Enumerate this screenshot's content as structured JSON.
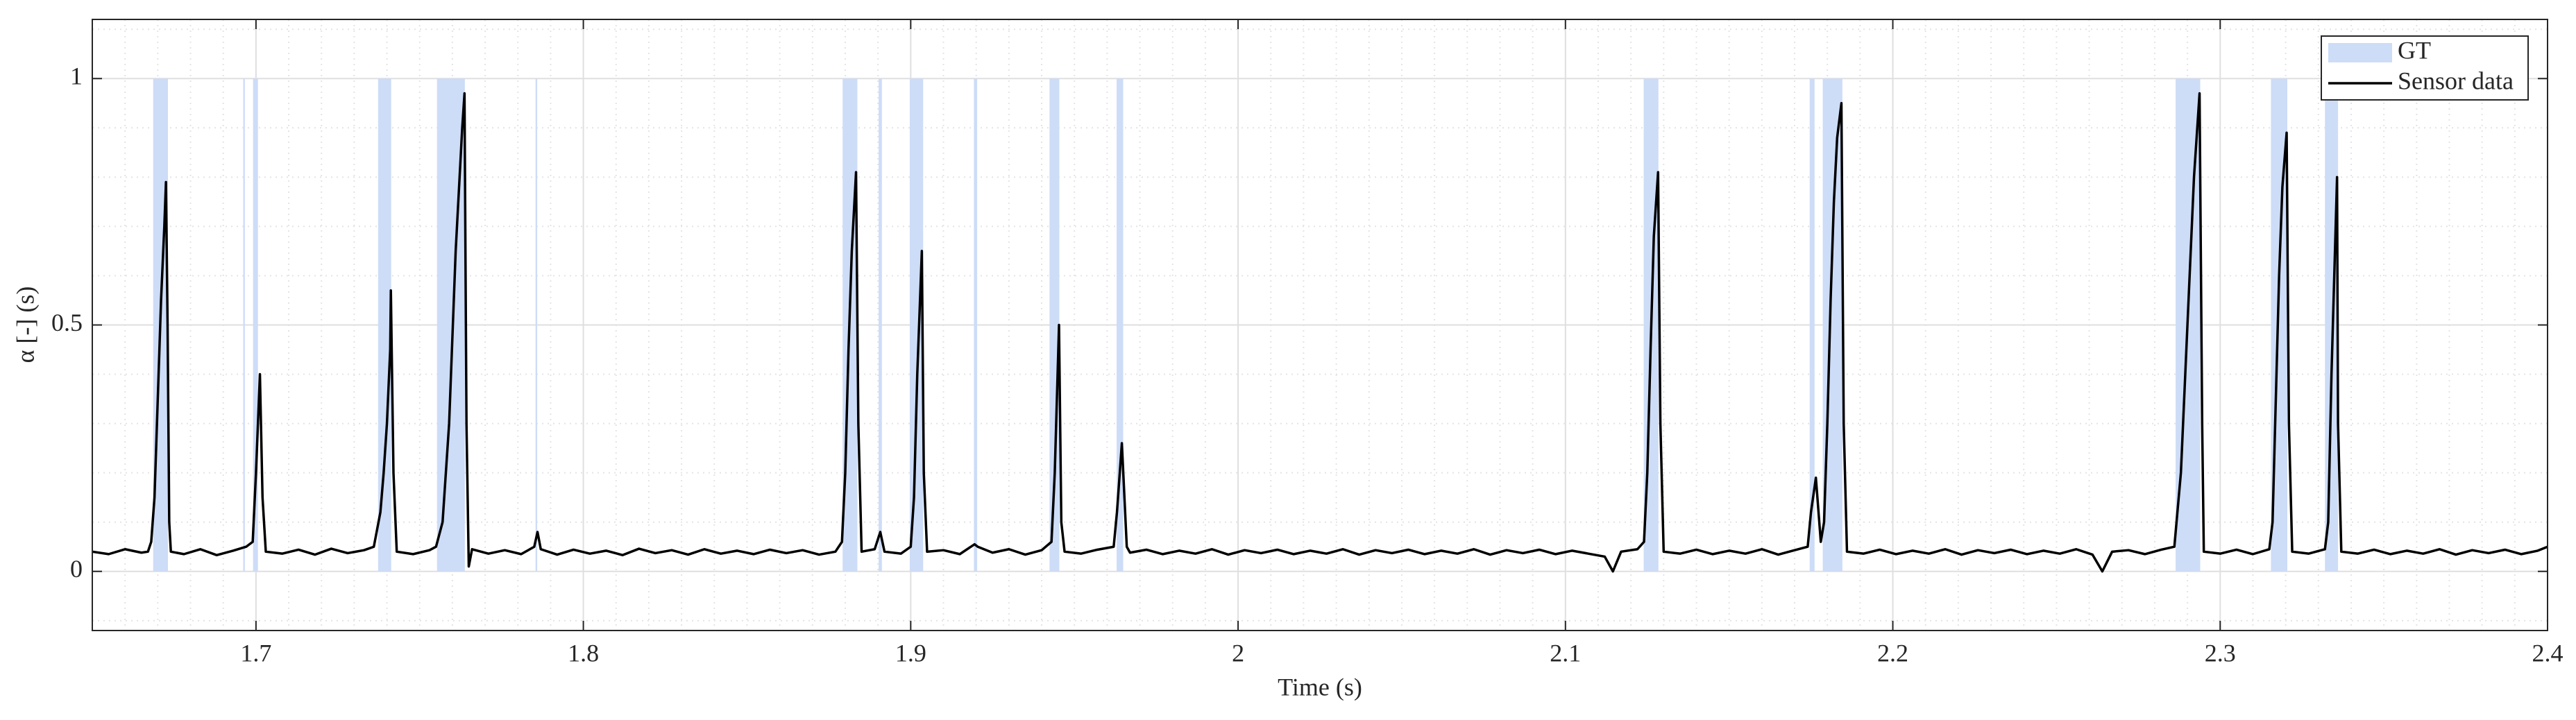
{
  "chart_data": {
    "type": "line",
    "xlabel": "Time (s)",
    "ylabel": "α [-] (s)",
    "xlim": [
      1.65,
      2.4
    ],
    "ylim": [
      -0.12,
      1.12
    ],
    "xticks": [
      1.7,
      1.8,
      1.9,
      2,
      2.1,
      2.2,
      2.3,
      2.4
    ],
    "yticks": [
      0,
      0.5,
      1
    ],
    "xminorticks": [
      1.65,
      1.66,
      1.67,
      1.68,
      1.69,
      1.71,
      1.72,
      1.73,
      1.74,
      1.75,
      1.76,
      1.77,
      1.78,
      1.79,
      1.81,
      1.82,
      1.83,
      1.84,
      1.85,
      1.86,
      1.87,
      1.88,
      1.89,
      1.91,
      1.92,
      1.93,
      1.94,
      1.95,
      1.96,
      1.97,
      1.98,
      1.99,
      2.01,
      2.02,
      2.03,
      2.04,
      2.05,
      2.06,
      2.07,
      2.08,
      2.09,
      2.11,
      2.12,
      2.13,
      2.14,
      2.15,
      2.16,
      2.17,
      2.18,
      2.19,
      2.21,
      2.22,
      2.23,
      2.24,
      2.25,
      2.26,
      2.27,
      2.28,
      2.29,
      2.31,
      2.32,
      2.33,
      2.34,
      2.35,
      2.36,
      2.37,
      2.38,
      2.39
    ],
    "yminorticks": [
      -0.1,
      0.1,
      0.2,
      0.3,
      0.4,
      0.6,
      0.7,
      0.8,
      0.9,
      1.1
    ],
    "grid": true,
    "minor_grid": true,
    "legend": "upper right",
    "series": [
      {
        "name": "GT",
        "color": "#cddcf7",
        "level": 1,
        "spans": [
          [
            1.6686,
            1.6731
          ],
          [
            1.6961,
            1.6966
          ],
          [
            1.6991,
            1.7006
          ],
          [
            1.7373,
            1.7413
          ],
          [
            1.7553,
            1.7638
          ],
          [
            1.7854,
            1.7859
          ],
          [
            1.8792,
            1.8837
          ],
          [
            1.8902,
            1.8912
          ],
          [
            1.8997,
            1.9038
          ],
          [
            1.9193,
            1.9203
          ],
          [
            1.9424,
            1.9454
          ],
          [
            1.9629,
            1.9649
          ],
          [
            2.1239,
            2.1284
          ],
          [
            2.1746,
            2.1761
          ],
          [
            2.1786,
            2.1846
          ],
          [
            2.2864,
            2.2939
          ],
          [
            2.3155,
            2.3205
          ],
          [
            2.332,
            2.336
          ]
        ]
      },
      {
        "name": "Sensor data",
        "color": "#000000",
        "x": [
          1.65,
          1.655,
          1.66,
          1.665,
          1.667,
          1.668,
          1.669,
          1.67,
          1.671,
          1.672,
          1.6725,
          1.673,
          1.6735,
          1.674,
          1.678,
          1.683,
          1.688,
          1.693,
          1.697,
          1.699,
          1.7,
          1.7012,
          1.702,
          1.703,
          1.708,
          1.713,
          1.718,
          1.723,
          1.728,
          1.733,
          1.736,
          1.738,
          1.739,
          1.74,
          1.741,
          1.7412,
          1.742,
          1.743,
          1.748,
          1.753,
          1.755,
          1.757,
          1.759,
          1.761,
          1.763,
          1.7637,
          1.7643,
          1.765,
          1.766,
          1.771,
          1.776,
          1.781,
          1.785,
          1.786,
          1.787,
          1.792,
          1.797,
          1.802,
          1.807,
          1.812,
          1.817,
          1.822,
          1.827,
          1.832,
          1.837,
          1.842,
          1.847,
          1.852,
          1.857,
          1.862,
          1.867,
          1.872,
          1.877,
          1.879,
          1.88,
          1.881,
          1.882,
          1.8833,
          1.884,
          1.885,
          1.889,
          1.8907,
          1.892,
          1.897,
          1.9,
          1.901,
          1.902,
          1.9034,
          1.904,
          1.905,
          1.91,
          1.915,
          1.9195,
          1.9205,
          1.925,
          1.93,
          1.935,
          1.94,
          1.943,
          1.944,
          1.9453,
          1.946,
          1.947,
          1.952,
          1.957,
          1.962,
          1.963,
          1.9645,
          1.966,
          1.967,
          1.972,
          1.977,
          1.982,
          1.987,
          1.992,
          1.997,
          2.002,
          2.007,
          2.012,
          2.017,
          2.022,
          2.027,
          2.032,
          2.037,
          2.042,
          2.047,
          2.052,
          2.057,
          2.062,
          2.067,
          2.072,
          2.077,
          2.082,
          2.087,
          2.092,
          2.097,
          2.102,
          2.107,
          2.112,
          2.1145,
          2.117,
          2.122,
          2.124,
          2.125,
          2.126,
          2.127,
          2.1283,
          2.129,
          2.13,
          2.135,
          2.14,
          2.145,
          2.15,
          2.155,
          2.16,
          2.165,
          2.17,
          2.174,
          2.175,
          2.1765,
          2.178,
          2.179,
          2.18,
          2.181,
          2.182,
          2.183,
          2.1843,
          2.185,
          2.186,
          2.191,
          2.196,
          2.201,
          2.206,
          2.211,
          2.216,
          2.221,
          2.226,
          2.231,
          2.236,
          2.241,
          2.246,
          2.251,
          2.256,
          2.261,
          2.264,
          2.267,
          2.272,
          2.277,
          2.282,
          2.286,
          2.288,
          2.29,
          2.292,
          2.2937,
          2.2945,
          2.295,
          2.3,
          2.305,
          2.31,
          2.315,
          2.316,
          2.317,
          2.318,
          2.319,
          2.3203,
          2.321,
          2.322,
          2.327,
          2.332,
          2.333,
          2.334,
          2.3357,
          2.336,
          2.337,
          2.342,
          2.347,
          2.352,
          2.357,
          2.362,
          2.367,
          2.372,
          2.377,
          2.382,
          2.387,
          2.392,
          2.397,
          2.4
        ],
        "values": [
          0.04,
          0.035,
          0.045,
          0.038,
          0.04,
          0.06,
          0.15,
          0.35,
          0.55,
          0.7,
          0.79,
          0.5,
          0.1,
          0.04,
          0.035,
          0.045,
          0.033,
          0.042,
          0.05,
          0.06,
          0.2,
          0.4,
          0.15,
          0.04,
          0.036,
          0.044,
          0.034,
          0.046,
          0.037,
          0.043,
          0.05,
          0.12,
          0.2,
          0.3,
          0.45,
          0.57,
          0.2,
          0.04,
          0.035,
          0.043,
          0.05,
          0.1,
          0.3,
          0.65,
          0.9,
          0.97,
          0.3,
          0.01,
          0.045,
          0.036,
          0.043,
          0.035,
          0.05,
          0.08,
          0.045,
          0.034,
          0.044,
          0.036,
          0.042,
          0.033,
          0.046,
          0.037,
          0.043,
          0.034,
          0.045,
          0.036,
          0.042,
          0.035,
          0.044,
          0.037,
          0.043,
          0.034,
          0.04,
          0.06,
          0.2,
          0.45,
          0.65,
          0.81,
          0.3,
          0.04,
          0.045,
          0.08,
          0.04,
          0.036,
          0.05,
          0.15,
          0.4,
          0.65,
          0.2,
          0.04,
          0.043,
          0.035,
          0.055,
          0.05,
          0.038,
          0.045,
          0.034,
          0.043,
          0.06,
          0.2,
          0.5,
          0.1,
          0.04,
          0.036,
          0.044,
          0.05,
          0.12,
          0.26,
          0.05,
          0.038,
          0.044,
          0.035,
          0.042,
          0.036,
          0.045,
          0.034,
          0.043,
          0.037,
          0.044,
          0.035,
          0.042,
          0.036,
          0.045,
          0.034,
          0.043,
          0.037,
          0.044,
          0.035,
          0.042,
          0.036,
          0.045,
          0.034,
          0.043,
          0.037,
          0.044,
          0.035,
          0.042,
          0.036,
          0.03,
          0.0,
          0.04,
          0.045,
          0.06,
          0.2,
          0.45,
          0.68,
          0.81,
          0.3,
          0.04,
          0.036,
          0.044,
          0.035,
          0.042,
          0.036,
          0.045,
          0.034,
          0.043,
          0.05,
          0.12,
          0.19,
          0.06,
          0.1,
          0.3,
          0.55,
          0.75,
          0.88,
          0.95,
          0.3,
          0.04,
          0.036,
          0.044,
          0.035,
          0.042,
          0.036,
          0.045,
          0.034,
          0.043,
          0.037,
          0.044,
          0.035,
          0.042,
          0.036,
          0.045,
          0.034,
          0.0,
          0.04,
          0.043,
          0.035,
          0.044,
          0.05,
          0.2,
          0.5,
          0.8,
          0.97,
          0.3,
          0.04,
          0.036,
          0.044,
          0.035,
          0.045,
          0.1,
          0.35,
          0.6,
          0.78,
          0.89,
          0.3,
          0.04,
          0.036,
          0.045,
          0.1,
          0.4,
          0.8,
          0.3,
          0.04,
          0.036,
          0.044,
          0.035,
          0.042,
          0.036,
          0.045,
          0.034,
          0.043,
          0.037,
          0.044,
          0.035,
          0.042,
          0.05
        ]
      }
    ]
  }
}
